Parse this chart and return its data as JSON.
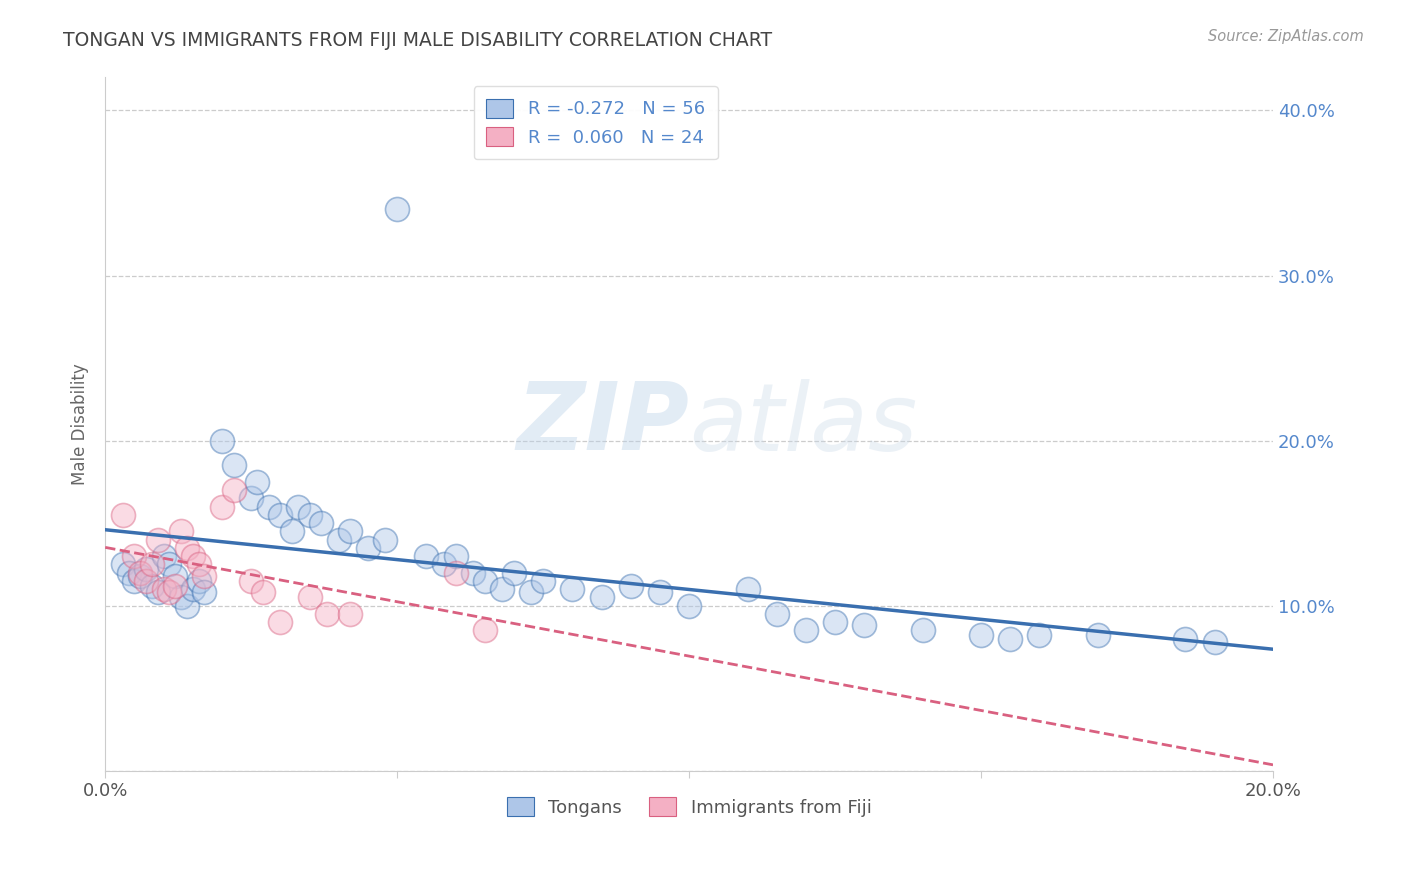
{
  "title": "TONGAN VS IMMIGRANTS FROM FIJI MALE DISABILITY CORRELATION CHART",
  "source": "Source: ZipAtlas.com",
  "ylabel": "Male Disability",
  "watermark": "ZIPatlas",
  "xlim": [
    0.0,
    0.2
  ],
  "ylim": [
    0.0,
    0.42
  ],
  "blue_color": "#aec6e8",
  "pink_color": "#f4b0c4",
  "blue_line_color": "#3a6faf",
  "pink_line_color": "#d96080",
  "background_color": "#ffffff",
  "grid_color": "#cccccc",
  "title_color": "#444444",
  "right_tick_color": "#5588cc",
  "blue_scatter": [
    [
      0.003,
      0.125
    ],
    [
      0.004,
      0.12
    ],
    [
      0.005,
      0.115
    ],
    [
      0.006,
      0.118
    ],
    [
      0.007,
      0.122
    ],
    [
      0.008,
      0.112
    ],
    [
      0.009,
      0.108
    ],
    [
      0.01,
      0.13
    ],
    [
      0.011,
      0.125
    ],
    [
      0.012,
      0.118
    ],
    [
      0.013,
      0.105
    ],
    [
      0.014,
      0.1
    ],
    [
      0.015,
      0.11
    ],
    [
      0.016,
      0.115
    ],
    [
      0.017,
      0.108
    ],
    [
      0.02,
      0.2
    ],
    [
      0.022,
      0.185
    ],
    [
      0.025,
      0.165
    ],
    [
      0.026,
      0.175
    ],
    [
      0.028,
      0.16
    ],
    [
      0.03,
      0.155
    ],
    [
      0.032,
      0.145
    ],
    [
      0.033,
      0.16
    ],
    [
      0.035,
      0.155
    ],
    [
      0.037,
      0.15
    ],
    [
      0.04,
      0.14
    ],
    [
      0.042,
      0.145
    ],
    [
      0.045,
      0.135
    ],
    [
      0.048,
      0.14
    ],
    [
      0.05,
      0.34
    ],
    [
      0.055,
      0.13
    ],
    [
      0.058,
      0.125
    ],
    [
      0.06,
      0.13
    ],
    [
      0.063,
      0.12
    ],
    [
      0.065,
      0.115
    ],
    [
      0.068,
      0.11
    ],
    [
      0.07,
      0.12
    ],
    [
      0.073,
      0.108
    ],
    [
      0.075,
      0.115
    ],
    [
      0.08,
      0.11
    ],
    [
      0.085,
      0.105
    ],
    [
      0.09,
      0.112
    ],
    [
      0.095,
      0.108
    ],
    [
      0.1,
      0.1
    ],
    [
      0.11,
      0.11
    ],
    [
      0.115,
      0.095
    ],
    [
      0.12,
      0.085
    ],
    [
      0.125,
      0.09
    ],
    [
      0.13,
      0.088
    ],
    [
      0.14,
      0.085
    ],
    [
      0.15,
      0.082
    ],
    [
      0.155,
      0.08
    ],
    [
      0.16,
      0.082
    ],
    [
      0.17,
      0.082
    ],
    [
      0.185,
      0.08
    ],
    [
      0.19,
      0.078
    ]
  ],
  "pink_scatter": [
    [
      0.003,
      0.155
    ],
    [
      0.005,
      0.13
    ],
    [
      0.006,
      0.12
    ],
    [
      0.007,
      0.115
    ],
    [
      0.008,
      0.125
    ],
    [
      0.009,
      0.14
    ],
    [
      0.01,
      0.11
    ],
    [
      0.011,
      0.108
    ],
    [
      0.012,
      0.112
    ],
    [
      0.013,
      0.145
    ],
    [
      0.014,
      0.135
    ],
    [
      0.015,
      0.13
    ],
    [
      0.016,
      0.125
    ],
    [
      0.017,
      0.118
    ],
    [
      0.02,
      0.16
    ],
    [
      0.022,
      0.17
    ],
    [
      0.025,
      0.115
    ],
    [
      0.027,
      0.108
    ],
    [
      0.03,
      0.09
    ],
    [
      0.035,
      0.105
    ],
    [
      0.038,
      0.095
    ],
    [
      0.042,
      0.095
    ],
    [
      0.06,
      0.12
    ],
    [
      0.065,
      0.085
    ]
  ]
}
